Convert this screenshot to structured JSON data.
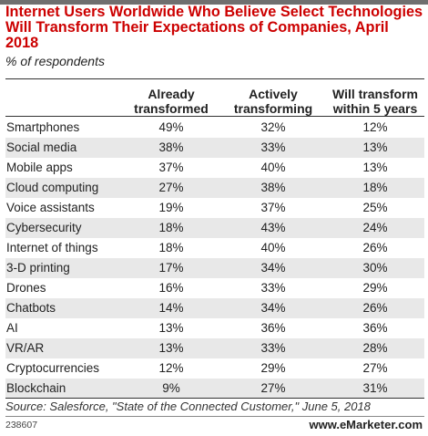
{
  "chart_data": {
    "type": "table",
    "title": "Internet Users Worldwide Who Believe Select Technologies Will Transform Their Expectations of Companies, April 2018",
    "subtitle": "% of respondents",
    "columns": [
      "Already transformed",
      "Actively transforming",
      "Will transform within 5 years"
    ],
    "column_lines": [
      [
        "Already",
        "transformed"
      ],
      [
        "Actively",
        "transforming"
      ],
      [
        "Will transform",
        "within 5 years"
      ]
    ],
    "rows": [
      {
        "label": "Smartphones",
        "values": [
          "49%",
          "32%",
          "12%"
        ]
      },
      {
        "label": "Social media",
        "values": [
          "38%",
          "33%",
          "13%"
        ]
      },
      {
        "label": "Mobile apps",
        "values": [
          "37%",
          "40%",
          "13%"
        ]
      },
      {
        "label": "Cloud computing",
        "values": [
          "27%",
          "38%",
          "18%"
        ]
      },
      {
        "label": "Voice assistants",
        "values": [
          "19%",
          "37%",
          "25%"
        ]
      },
      {
        "label": "Cybersecurity",
        "values": [
          "18%",
          "43%",
          "24%"
        ]
      },
      {
        "label": "Internet of things",
        "values": [
          "18%",
          "40%",
          "26%"
        ]
      },
      {
        "label": "3-D printing",
        "values": [
          "17%",
          "34%",
          "30%"
        ]
      },
      {
        "label": "Drones",
        "values": [
          "16%",
          "33%",
          "29%"
        ]
      },
      {
        "label": "Chatbots",
        "values": [
          "14%",
          "34%",
          "26%"
        ]
      },
      {
        "label": "AI",
        "values": [
          "13%",
          "36%",
          "36%"
        ]
      },
      {
        "label": "VR/AR",
        "values": [
          "13%",
          "33%",
          "28%"
        ]
      },
      {
        "label": "Cryptocurrencies",
        "values": [
          "12%",
          "29%",
          "27%"
        ]
      },
      {
        "label": "Blockchain",
        "values": [
          "9%",
          "27%",
          "31%"
        ]
      }
    ],
    "source": "Source: Salesforce, \"State of the Connected Customer,\" June 5, 2018",
    "chart_id": "238607",
    "brand": "www.eMarketer.com"
  },
  "colors": {
    "title": "#cc0000",
    "row_shade": "#e8e8e8",
    "top_bar": "#6f6f6f"
  }
}
